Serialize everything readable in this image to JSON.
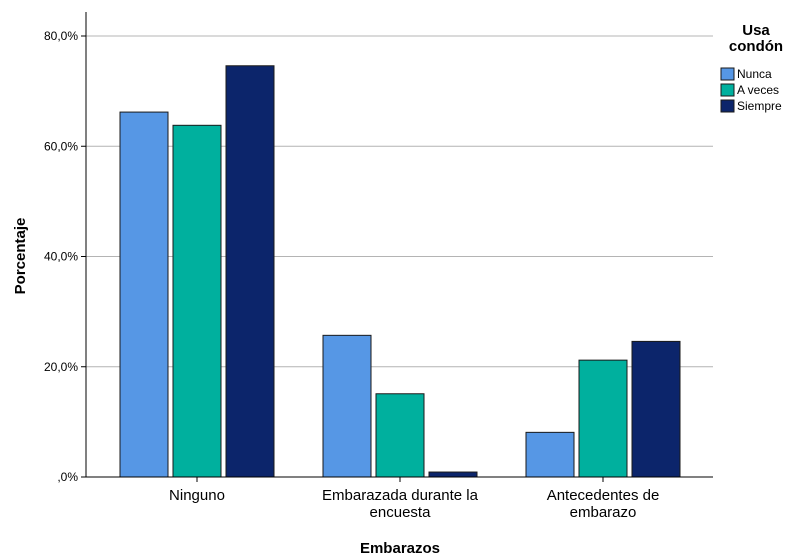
{
  "chart_data": {
    "type": "bar",
    "categories": [
      [
        "Ninguno"
      ],
      [
        "Embarazada durante la",
        "encuesta"
      ],
      [
        "Antecedentes de",
        "embarazo"
      ]
    ],
    "series": [
      {
        "name": "Nunca",
        "color": "#5697E5",
        "values": [
          66.2,
          25.7,
          8.1
        ]
      },
      {
        "name": "A veces",
        "color": "#00B09E",
        "values": [
          63.8,
          15.1,
          21.2
        ]
      },
      {
        "name": "Siempre",
        "color": "#0C256B",
        "values": [
          74.6,
          0.9,
          24.6
        ]
      }
    ],
    "xlabel": "Embarazos",
    "ylabel": "Porcentaje",
    "ylim": [
      0,
      80
    ],
    "yticks": [
      0,
      20,
      40,
      60,
      80
    ],
    "ytick_labels": [
      ",0%",
      "20,0%",
      "40,0%",
      "60,0%",
      "80,0%"
    ],
    "grid": true,
    "legend": {
      "title_lines": [
        "Usa",
        "condón"
      ],
      "placement": "right"
    }
  }
}
